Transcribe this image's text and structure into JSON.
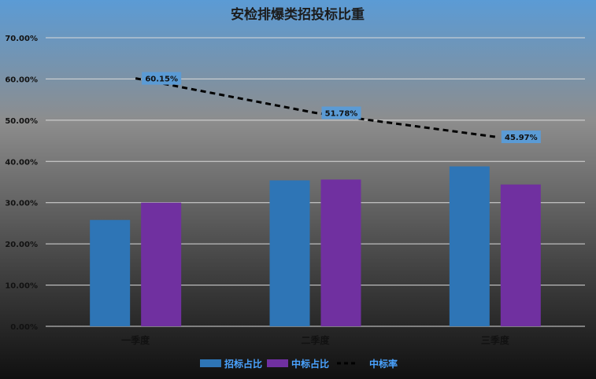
{
  "chart_data": {
    "type": "bar",
    "title": "安检排爆类招投标比重",
    "categories": [
      "一季度",
      "二季度",
      "三季度"
    ],
    "series": [
      {
        "name": "招标占比",
        "type": "bar",
        "color": "#2e75b6",
        "values": [
          25.8,
          35.4,
          38.8
        ]
      },
      {
        "name": "中标占比",
        "type": "bar",
        "color": "#7030a0",
        "values": [
          30.0,
          35.6,
          34.4
        ]
      },
      {
        "name": "中标率",
        "type": "line",
        "color": "#000000",
        "style": "dashed",
        "values": [
          60.15,
          51.78,
          45.97
        ],
        "labels": [
          "60.15%",
          "51.78%",
          "45.97%"
        ]
      }
    ],
    "ylim": [
      0,
      70
    ],
    "yticks": [
      "0.00%",
      "10.00%",
      "20.00%",
      "30.00%",
      "40.00%",
      "50.00%",
      "60.00%",
      "70.00%"
    ],
    "grid": true,
    "legend_position": "bottom",
    "label_bg": "#5b9bd5"
  }
}
